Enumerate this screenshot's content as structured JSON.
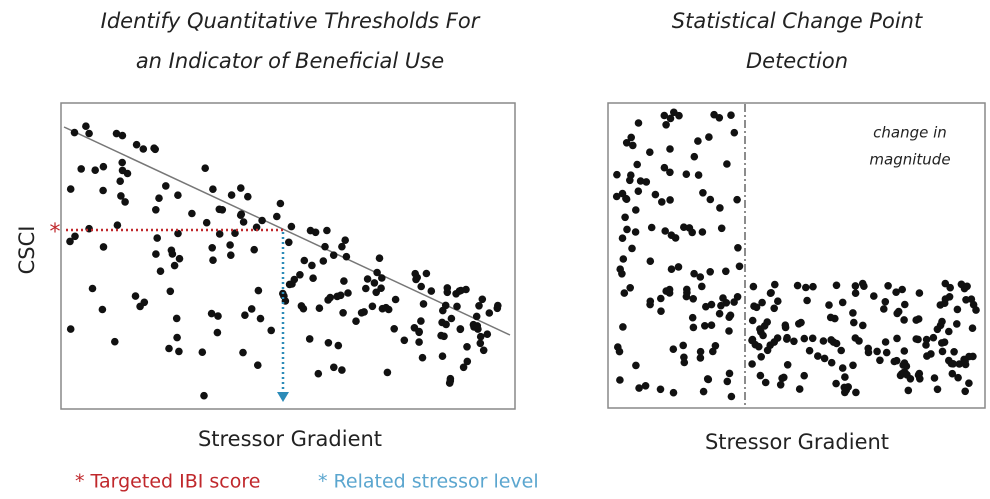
{
  "left": {
    "title": [
      "Identify Quantitative Thresholds For",
      "an Indicator of Beneficial Use"
    ],
    "y_label": "CSCI",
    "x_label": "Stressor Gradient",
    "star": "*",
    "legend": [
      "* Targeted IBI score",
      "* Related stressor level"
    ]
  },
  "right": {
    "title": [
      "Statistical Change Point",
      "Detection"
    ],
    "annotation": [
      "change in",
      "magnitude"
    ],
    "x_label": "Stressor Gradient"
  }
}
